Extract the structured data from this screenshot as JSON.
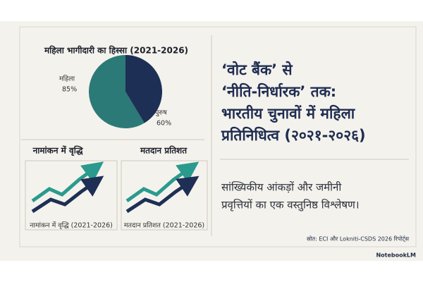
{
  "pie_chart": {
    "type": "pie",
    "title": "महिला भागीदारी का हिस्सा (2021-2026)",
    "categories": [
      "महिला",
      "पुरुष"
    ],
    "values": [
      85,
      60
    ],
    "value_labels": [
      "85%",
      "60%"
    ],
    "colors": [
      "#2b7a78",
      "#1e2f55"
    ]
  },
  "trend_cards": [
    {
      "title": "नामांकन में वृद्धि",
      "caption": "नामांकन में वृद्धि (2021-2026)"
    },
    {
      "title": "मतदान प्रतिशत",
      "caption": "मतदान प्रतिशत (2021-2026)"
    }
  ],
  "headline": [
    "‘वोट बैंक’ से",
    "‘नीति-निर्धारक’ तक:",
    "भारतीय चुनावों में महिला",
    "प्रतिनिधित्व (२०२१-२०२६)"
  ],
  "subtitle": [
    "सांख्यिकीय आंकड़ों और जमीनी",
    "प्रवृत्तियों का एक वस्तुनिष्ठ विश्लेषण।"
  ],
  "source": "स्रोत: ECI और Lokniti-CSDS 2026 रिपोर्ट्स",
  "brand": "NotebookLM"
}
